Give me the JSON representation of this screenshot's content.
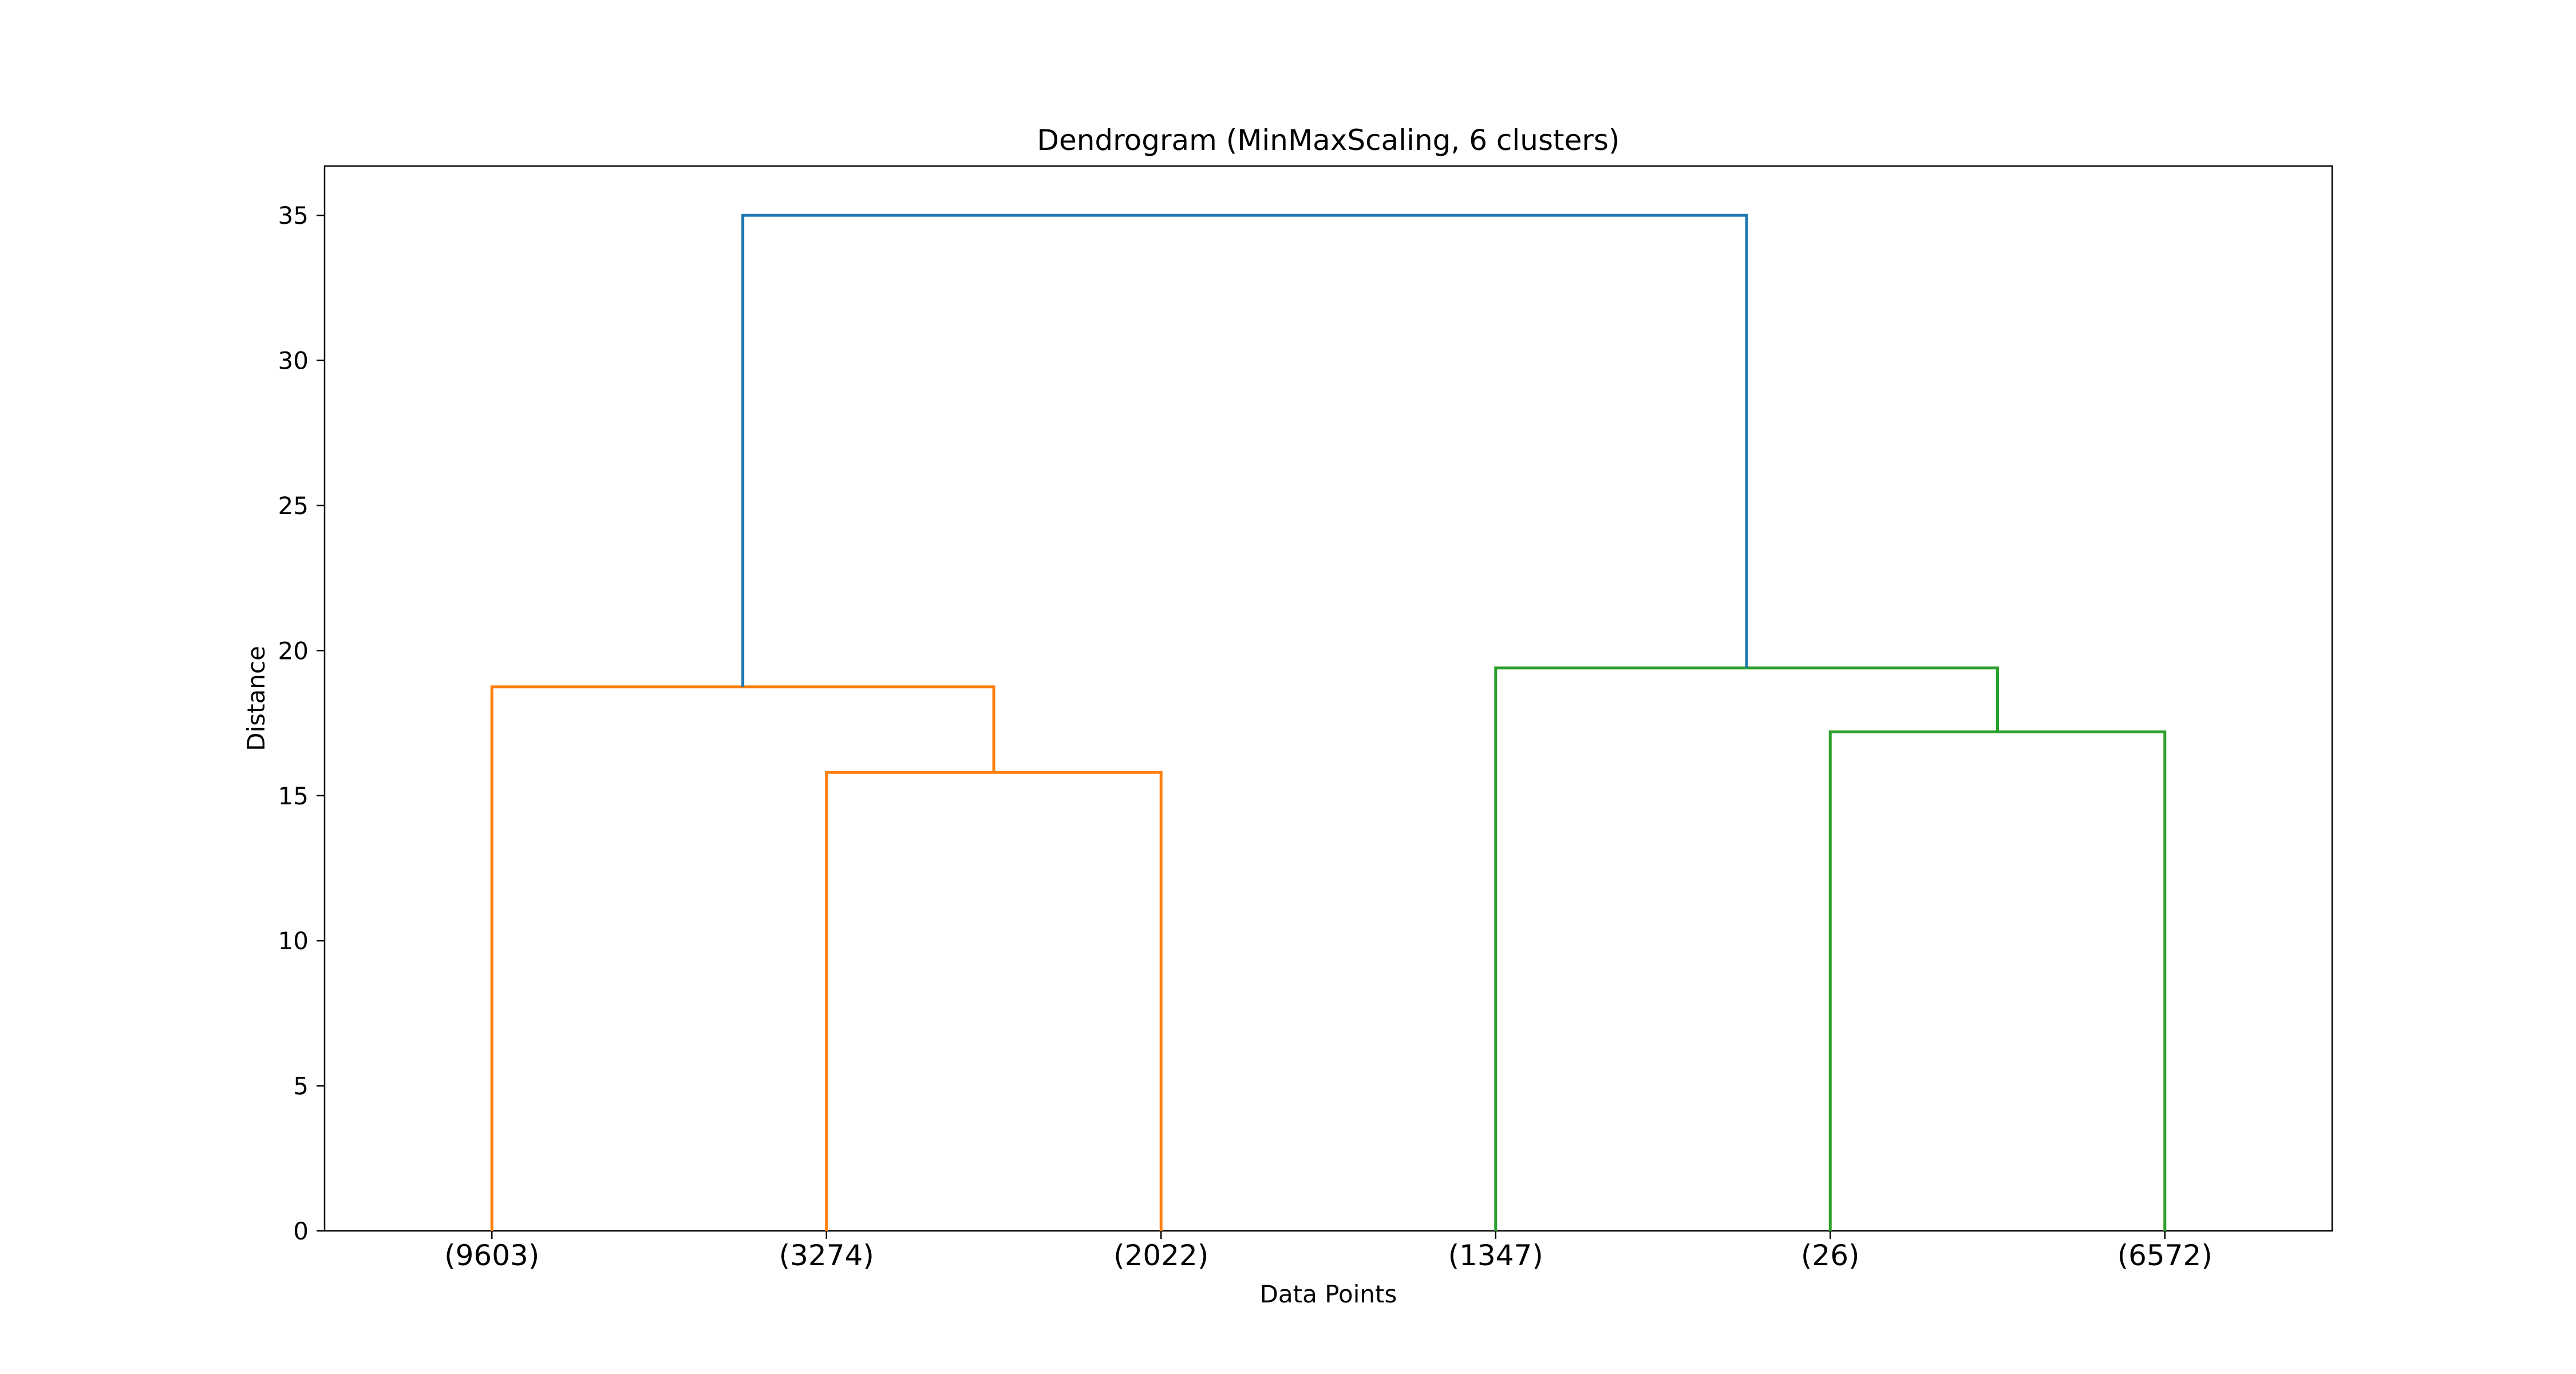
{
  "chart_data": {
    "type": "dendrogram",
    "title": "Dendrogram (MinMaxScaling, 6 clusters)",
    "xlabel": "Data Points",
    "ylabel": "Distance",
    "ylim": [
      0,
      36.7
    ],
    "yticks": [
      0,
      5,
      10,
      15,
      20,
      25,
      30,
      35
    ],
    "leaves": [
      "(9603)",
      "(3274)",
      "(2022)",
      "(1347)",
      "(26)",
      "(6572)"
    ],
    "colors": {
      "left_cluster": "#ff7f0e",
      "right_cluster": "#2ca02c",
      "root_link": "#1f77b4"
    },
    "links": [
      {
        "x": [
          1,
          1,
          2,
          2
        ],
        "y": [
          0,
          15.8,
          15.8,
          0
        ],
        "color_key": "left_cluster"
      },
      {
        "x": [
          0,
          0,
          1.5,
          1.5
        ],
        "y": [
          0,
          18.75,
          18.75,
          15.8
        ],
        "color_key": "left_cluster"
      },
      {
        "x": [
          4,
          4,
          5,
          5
        ],
        "y": [
          0,
          17.2,
          17.2,
          0
        ],
        "color_key": "right_cluster"
      },
      {
        "x": [
          3,
          3,
          4.5,
          4.5
        ],
        "y": [
          0,
          19.4,
          19.4,
          17.2
        ],
        "color_key": "right_cluster"
      },
      {
        "x": [
          0.75,
          0.75,
          3.75,
          3.75
        ],
        "y": [
          18.75,
          35,
          35,
          19.4
        ],
        "color_key": "root_link"
      }
    ]
  }
}
